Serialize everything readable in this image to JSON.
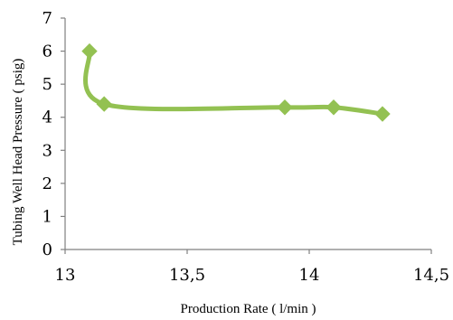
{
  "chart_data": {
    "type": "line",
    "xlabel": "Production Rate ( l/min )",
    "ylabel": "Tubing Well Head Pressure ( psig)",
    "xlim": [
      13,
      14.5
    ],
    "ylim": [
      0,
      7
    ],
    "x_ticks": [
      "13",
      "13,5",
      "14",
      "14,5"
    ],
    "y_ticks": [
      "0",
      "1",
      "2",
      "3",
      "4",
      "5",
      "6",
      "7"
    ],
    "grid": false,
    "smooth": true,
    "colors": {
      "series": "#93c152",
      "axis": "#808080"
    },
    "series": [
      {
        "x": [
          13.1,
          13.16,
          13.9,
          14.1,
          14.3
        ],
        "y": [
          6.0,
          4.4,
          4.3,
          4.3,
          4.1
        ]
      }
    ]
  }
}
